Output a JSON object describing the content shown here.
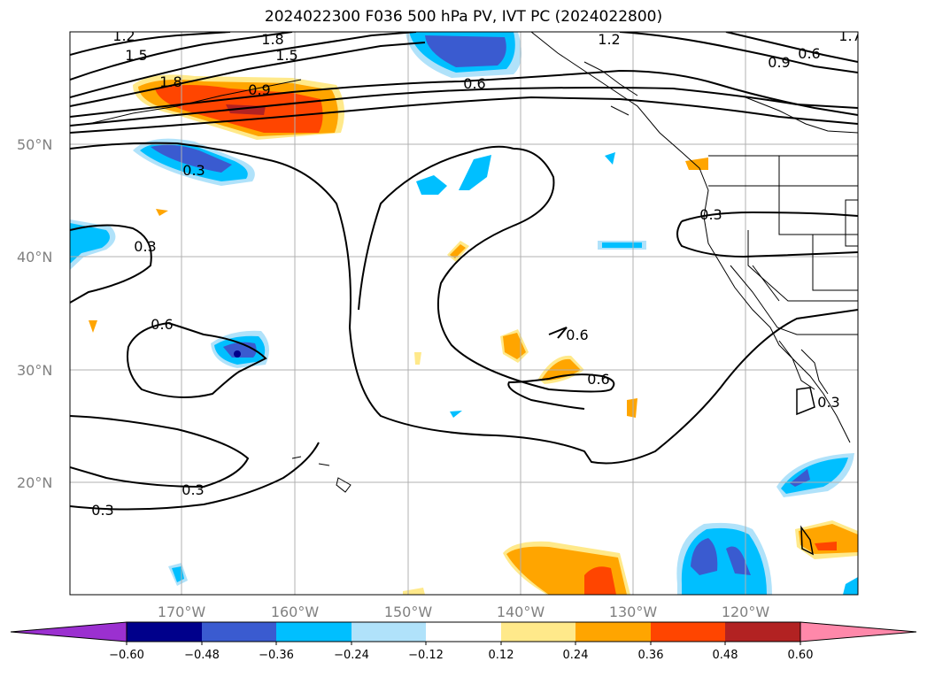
{
  "title": "2024022300 F036 500 hPa PV, IVT PC (2024022800)",
  "lat_labels": [
    "50°N",
    "40°N",
    "30°N",
    "20°N"
  ],
  "lon_labels": [
    "170°W",
    "160°W",
    "150°W",
    "140°W",
    "130°W",
    "120°W"
  ],
  "contour_labels": [
    "1.2",
    "1.8",
    "1.5",
    "1.5",
    "1.2",
    "0.9",
    "0.6",
    "1.8",
    "0.9",
    "0.6",
    "0.3",
    "0.3",
    "0.6",
    "0.6",
    "0.6",
    "0.3",
    "0.3",
    "0.3",
    "0.3",
    "1.7"
  ],
  "colorbar": {
    "ticks": [
      "−0.60",
      "−0.48",
      "−0.36",
      "−0.24",
      "−0.12",
      "0.12",
      "0.24",
      "0.36",
      "0.48",
      "0.60"
    ],
    "colors": [
      "#9b30d0",
      "#00008b",
      "#3a5bd0",
      "#00bfff",
      "#b0e2fa",
      "#ffffff",
      "#ffe98a",
      "#ffa500",
      "#ff4500",
      "#b22222",
      "#ff88aa"
    ]
  }
}
